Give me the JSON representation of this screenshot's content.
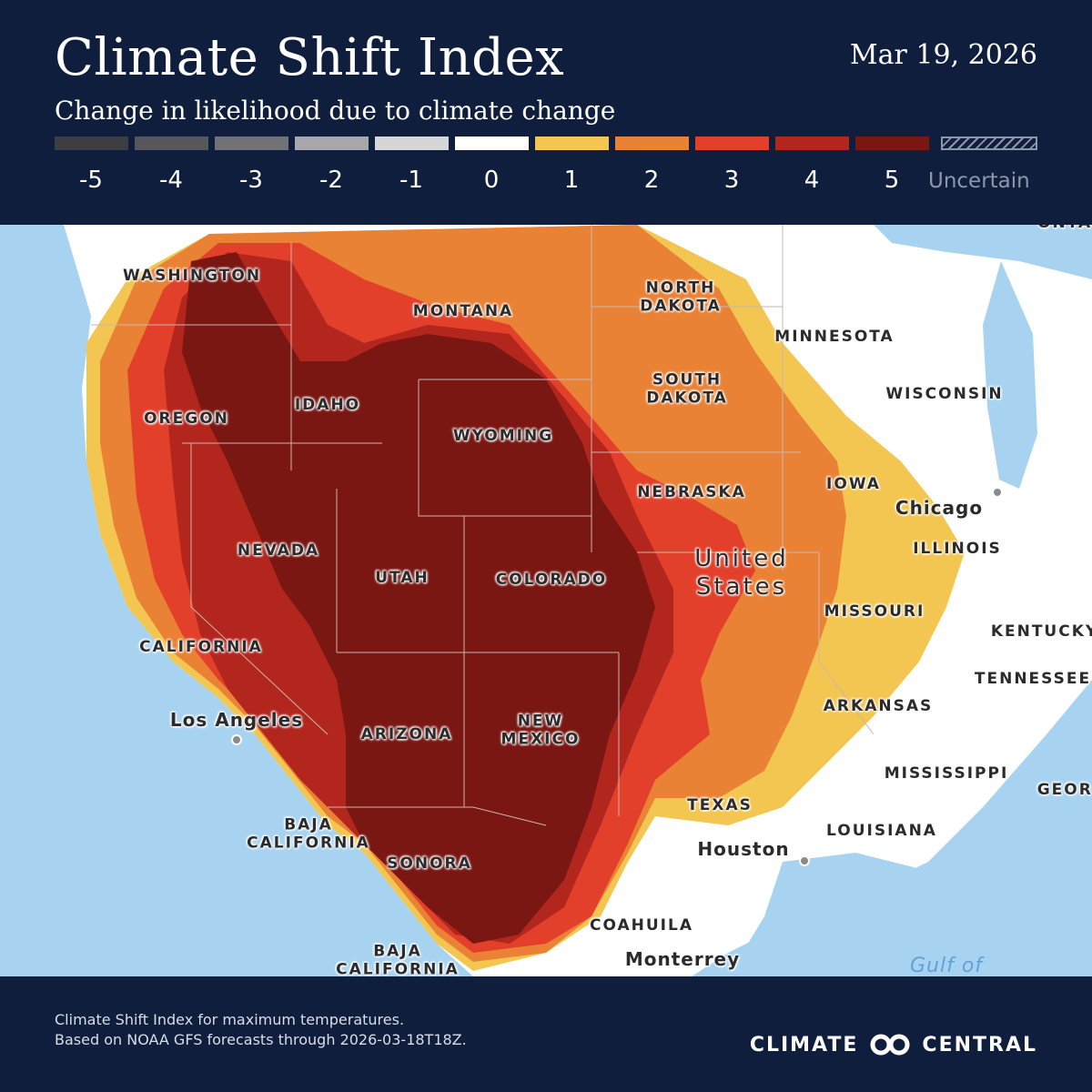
{
  "header": {
    "title": "Climate Shift Index",
    "date": "Mar 19, 2026",
    "subtitle": "Change in likelihood due to climate change"
  },
  "legend": {
    "items": [
      {
        "label": "-5",
        "color": "#3c3e42"
      },
      {
        "label": "-4",
        "color": "#55575b"
      },
      {
        "label": "-3",
        "color": "#707276"
      },
      {
        "label": "-2",
        "color": "#a6a8ab"
      },
      {
        "label": "-1",
        "color": "#d5d6d7"
      },
      {
        "label": "0",
        "color": "#ffffff"
      },
      {
        "label": "1",
        "color": "#f3c651"
      },
      {
        "label": "2",
        "color": "#ea8235"
      },
      {
        "label": "3",
        "color": "#e2402a"
      },
      {
        "label": "4",
        "color": "#b3261e"
      },
      {
        "label": "5",
        "color": "#7a1712"
      }
    ],
    "uncertain_label": "Uncertain"
  },
  "map": {
    "colors": {
      "water": "#a8d3f0",
      "land": "#ffffff",
      "level_1": "#f3c651",
      "level_2": "#ea8235",
      "level_3": "#e2402a",
      "level_4": "#b3261e",
      "level_5": "#7a1712",
      "border": "#c9b7b0"
    },
    "states": [
      "WASHINGTON",
      "MONTANA",
      "NORTH DAKOTA",
      "MINNESOTA",
      "OREGON",
      "IDAHO",
      "SOUTH DAKOTA",
      "WISCONSIN",
      "WYOMING",
      "NEBRASKA",
      "IOWA",
      "NEVADA",
      "UTAH",
      "COLORADO",
      "ILLINOIS",
      "MISSOURI",
      "CALIFORNIA",
      "KENTUCKY",
      "TENNESSEE",
      "ARKANSAS",
      "ARIZONA",
      "NEW MEXICO",
      "MISSISSIPPI",
      "TEXAS",
      "LOUISIANA",
      "BAJA CALIFORNIA",
      "SONORA",
      "COAHUILA",
      "BAJA CALIFORNIA",
      "GEORGIA",
      "ONTARIO"
    ],
    "country": "United States",
    "cities": [
      "Chicago",
      "Los Angeles",
      "Houston",
      "Monterrey"
    ],
    "water": "Gulf of"
  },
  "footer": {
    "line1": "Climate Shift Index for maximum temperatures.",
    "line2": "Based on NOAA GFS forecasts through 2026-03-18T18Z.",
    "brand_left": "CLIMATE",
    "brand_right": "CENTRAL"
  }
}
